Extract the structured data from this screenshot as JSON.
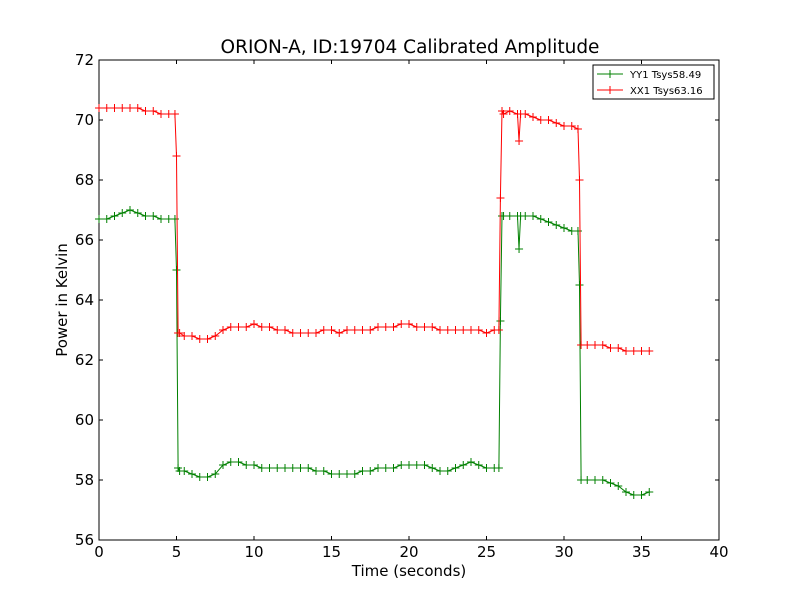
{
  "chart_data": {
    "type": "line",
    "title": "ORION-A, ID:19704 Calibrated Amplitude",
    "xlabel": "Time (seconds)",
    "ylabel": "Power in Kelvin",
    "xlim": [
      0,
      40
    ],
    "ylim": [
      56,
      72
    ],
    "xticks": [
      0,
      5,
      10,
      15,
      20,
      25,
      30,
      35,
      40
    ],
    "yticks": [
      56,
      58,
      60,
      62,
      64,
      66,
      68,
      70,
      72
    ],
    "grid": false,
    "legend_position": "top-right",
    "marker": "+",
    "series": [
      {
        "name": "YY1 Tsys58.49",
        "color": "#008000",
        "x": [
          0,
          0.5,
          1.0,
          1.5,
          2.0,
          2.5,
          3.0,
          3.5,
          4.0,
          4.5,
          4.9,
          5.0,
          5.1,
          5.2,
          5.5,
          6.0,
          6.5,
          7.0,
          7.5,
          8.0,
          8.5,
          9.0,
          9.5,
          10.0,
          10.5,
          11.0,
          11.5,
          12.0,
          12.5,
          13.0,
          13.5,
          14.0,
          14.5,
          15.0,
          15.5,
          16.0,
          16.5,
          17.0,
          17.5,
          18.0,
          18.5,
          19.0,
          19.5,
          20.0,
          20.5,
          21.0,
          21.5,
          22.0,
          22.5,
          23.0,
          23.5,
          24.0,
          24.5,
          25.0,
          25.5,
          25.8,
          25.9,
          26.0,
          26.1,
          26.5,
          27.0,
          27.1,
          27.2,
          27.5,
          28.0,
          28.5,
          29.0,
          29.5,
          30.0,
          30.5,
          30.9,
          31.0,
          31.1,
          31.5,
          32.0,
          32.5,
          33.0,
          33.5,
          34.0,
          34.5,
          35.0,
          35.5
        ],
        "y": [
          66.7,
          66.7,
          66.8,
          66.9,
          67.0,
          66.9,
          66.8,
          66.8,
          66.7,
          66.7,
          66.7,
          65.0,
          58.4,
          58.3,
          58.3,
          58.2,
          58.1,
          58.1,
          58.2,
          58.5,
          58.6,
          58.6,
          58.5,
          58.5,
          58.4,
          58.4,
          58.4,
          58.4,
          58.4,
          58.4,
          58.4,
          58.3,
          58.3,
          58.2,
          58.2,
          58.2,
          58.2,
          58.3,
          58.3,
          58.4,
          58.4,
          58.4,
          58.5,
          58.5,
          58.5,
          58.5,
          58.4,
          58.3,
          58.3,
          58.4,
          58.5,
          58.6,
          58.5,
          58.4,
          58.4,
          58.4,
          63.3,
          66.8,
          66.8,
          66.8,
          66.8,
          65.7,
          66.8,
          66.8,
          66.8,
          66.7,
          66.6,
          66.5,
          66.4,
          66.3,
          66.3,
          64.5,
          58.0,
          58.0,
          58.0,
          58.0,
          57.9,
          57.8,
          57.6,
          57.5,
          57.5,
          57.6
        ]
      },
      {
        "name": "XX1 Tsys63.16",
        "color": "#ff0000",
        "x": [
          0,
          0.5,
          1.0,
          1.5,
          2.0,
          2.5,
          3.0,
          3.5,
          4.0,
          4.5,
          4.9,
          5.0,
          5.1,
          5.2,
          5.5,
          6.0,
          6.5,
          7.0,
          7.5,
          8.0,
          8.5,
          9.0,
          9.5,
          10.0,
          10.5,
          11.0,
          11.5,
          12.0,
          12.5,
          13.0,
          13.5,
          14.0,
          14.5,
          15.0,
          15.5,
          16.0,
          16.5,
          17.0,
          17.5,
          18.0,
          18.5,
          19.0,
          19.5,
          20.0,
          20.5,
          21.0,
          21.5,
          22.0,
          22.5,
          23.0,
          23.5,
          24.0,
          24.5,
          25.0,
          25.5,
          25.8,
          25.9,
          26.0,
          26.1,
          26.5,
          27.0,
          27.1,
          27.2,
          27.5,
          28.0,
          28.5,
          29.0,
          29.5,
          30.0,
          30.5,
          30.9,
          31.0,
          31.1,
          31.5,
          32.0,
          32.5,
          33.0,
          33.5,
          34.0,
          34.5,
          35.0,
          35.5
        ],
        "y": [
          70.4,
          70.4,
          70.4,
          70.4,
          70.4,
          70.4,
          70.3,
          70.3,
          70.2,
          70.2,
          70.2,
          68.8,
          62.9,
          62.9,
          62.8,
          62.8,
          62.7,
          62.7,
          62.8,
          63.0,
          63.1,
          63.1,
          63.1,
          63.2,
          63.1,
          63.1,
          63.0,
          63.0,
          62.9,
          62.9,
          62.9,
          62.9,
          63.0,
          63.0,
          62.9,
          63.0,
          63.0,
          63.0,
          63.0,
          63.1,
          63.1,
          63.1,
          63.2,
          63.2,
          63.1,
          63.1,
          63.1,
          63.0,
          63.0,
          63.0,
          63.0,
          63.0,
          63.0,
          62.9,
          63.0,
          63.0,
          67.4,
          70.3,
          70.2,
          70.3,
          70.2,
          69.3,
          70.2,
          70.2,
          70.1,
          70.0,
          70.0,
          69.9,
          69.8,
          69.8,
          69.7,
          68.0,
          62.5,
          62.5,
          62.5,
          62.5,
          62.4,
          62.4,
          62.3,
          62.3,
          62.3,
          62.3
        ]
      }
    ]
  }
}
